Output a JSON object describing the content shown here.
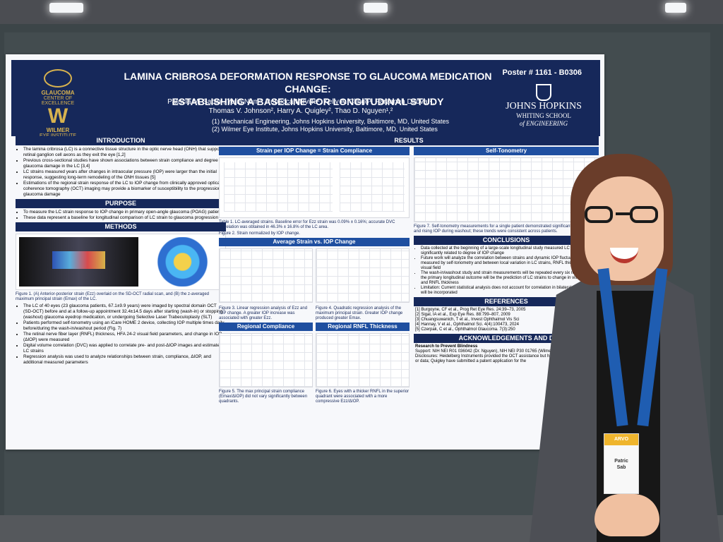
{
  "poster": {
    "number": "Poster # 1161 - B0306",
    "title_line1": "LAMINA CRIBROSA DEFORMATION RESPONSE TO GLAUCOMA MEDICATION CHANGE:",
    "title_line2": "ESTABLISHING A BASELINE FOR LONGITUDINAL STUDY",
    "authors_line1": "Patricia M. Sabin¹, Yulia Nam², Rebecca Mirville², Kelly A. Clingo¹, Farzaneh Dadvar²,",
    "authors_line2": "Thomas V. Johnson², Harry A. Quigley², Thao D. Nguyen¹,²",
    "affiliation_1": "(1)   Mechanical Engineering, Johns Hopkins University, Baltimore, MD, United States",
    "affiliation_2": "(2)   Wilmer Eye Institute, Johns Hopkins University, Baltimore, MD, United States",
    "left_logo_top": "GLAUCOMA",
    "left_logo_top_sub": "CENTER OF EXCELLENCE",
    "left_logo_bottom": "WILMER",
    "left_logo_bottom_sub": "EYE INSTITUTE",
    "jh_line1": "JOHNS HOPKINS",
    "jh_line2": "WHITING SCHOOL",
    "jh_line3": "of ENGINEERING"
  },
  "sections": {
    "introduction": "INTRODUCTION",
    "purpose": "PURPOSE",
    "methods": "METHODS",
    "results": "RESULTS",
    "strain_compliance": "Strain per IOP Change = Strain Compliance",
    "self_tonometry": "Self-Tonometry",
    "average_strain": "Average Strain vs. IOP Change",
    "regional_compliance": "Regional Compliance",
    "regional_rnfl": "Regional RNFL Thickness",
    "conclusions": "CONCLUSIONS",
    "references": "REFERENCES",
    "acknowledgements": "ACKNOWLEDGEMENTS AND D"
  },
  "introduction": {
    "b1": "The lamina cribrosa (LC) is a connective tissue structure in the optic nerve head (ONH) that supports retinal ganglion cell axons as they exit the eye [1,2]",
    "b2": "Previous cross-sectional studies have shown associations between strain compliance and degree of glaucoma damage in the LC [3,4]",
    "b3": "LC strains measured years after changes in intraocular pressure (IOP) were larger than the initial response, suggesting long-term remodeling of the ONH tissues [5]",
    "b4": "Estimations of the regional strain response of the LC to IOP change from clinically approved optical coherence tomography (OCT) imaging may provide a biomarker of susceptibility to the progression of glaucoma damage"
  },
  "purpose": {
    "b1": "To measure the LC strain response to IOP change in primary open-angle glaucoma (POAG) patients",
    "b2": "These data represent a baseline for longitudinal comparison of LC strain to glaucoma progression"
  },
  "methods": {
    "fig1_caption": "Figure 1. (A) Anterior-posterior strain (Ezz) overlaid on the SD-OCT radial scan, and (B) the z-averaged maximum principal strain (Emax) of the LC.",
    "b1": "The LC of 40 eyes (23 glaucoma patients, 67.1±9.9 years) were imaged by spectral domain OCT (SD-OCT) before and at a follow-up appointment 32.4±14.5 days after starting (wash-in) or stopping (washout) glaucoma eyedrop medication, or undergoing Selective Laser Trabeculoplasty (SLT)",
    "b2": "Patients performed self-tonometry using an iCare HOME 2 device, collecting IOP multiple times daily before/during the wash-in/washout period (Fig. 7)",
    "b3": "The retinal nerve fiber layer (RNFL) thickness, HFA 24-2 visual field parameters, and change in IOP (ΔIOP) were measured",
    "b4": "Digital volume correlation (DVC) was applied to correlate pre- and post-ΔIOP images and estimate LC strains",
    "b5": "Regression analysis was used to analyze relationships between strain, compliance, ΔIOP, and additional measured parameters"
  },
  "results": {
    "table1_caption": "Table 1. LC-averaged strains. Baseline error for Ezz strain was 0.09% ± 0.16%; accurate DVC correlation was obtained in 46.3% ± 16.8% of the LC area.",
    "fig2_caption": "Figure 2. Strain normalized by IOP change.",
    "fig3_caption": "Figure 3. Linear regression analysis of Ezz and IOP change. A greater IOP increase was associated with greater Ezz.",
    "fig4_caption": "Figure 4. Quadratic regression analysis of the maximum principal strain. Greater IOP change produced greater Emax.",
    "fig5_caption": "Figure 5. The max principal strain compliance (Emax/ΔIOP) did not vary significantly between quadrants.",
    "fig6_caption": "Figure 6. Eyes with a thicker RNFL in the superior quadrant were associated with a more compressive Ezz/ΔIOP.",
    "fig7_caption": "Figure 7. Self-tonometry measurements for a single patient demonstrated significant fluctuations and rising IOP during washout; these trends were consistent across patients."
  },
  "conclusions": {
    "b1": "Data collected at the beginning of a large-scale longitudinal study measured LC strains significantly related to degree of IOP change",
    "b2": "Future work will analyze the correlation between strains and dynamic IOP fluctuations measured by self-tonometry and between local variation in LC strains, RNFL thickness, and visual field",
    "b3": "The wash-in/washout study and strain measurements will be repeated every six months, and the primary longitudinal outcome will be the prediction of LC strains to change in visual field and RNFL thickness",
    "b4": "Limitation: Current statistical analysis does not account for correlation in bilateral patients; this will be incorporated"
  },
  "references": [
    "[1] Burgoyne, CF et al., Prog Ret Eye Res. 24:39–73, 2005",
    "[2] Sigal, IA et al., Exp Eye Res. 88:799–807, 2009",
    "[3] Chuangsuwanich, T et al., Invest Ophthalmol Vis Sci",
    "[4] Hannay, V et al., Ophthalmol Sci. 4(4):100473, 2024",
    "[5] Czerpak, C et al., Ophthalmol Glaucoma. 7(3):250"
  ],
  "acknowledgements": {
    "rpb": "Research to Prevent Blindness",
    "support": "Support: NIH NEI R01 036042 (Dr. Nguyen), NIH NEI P30 01765 (Wilmer Institute Core Grant)",
    "disclosures": "Disclosures: Heidelberg Instruments provided the OCT assistance but had no role in study design or data; Quigley have submitted a patent application for the"
  },
  "lanyard": {
    "logo": "ARVO",
    "badge_name_line1": "Patric",
    "badge_name_line2": "Sab"
  },
  "colors": {
    "poster_navy": "#16285a",
    "accent_blue": "#1f4fa0",
    "lanyard_blue": "#1f5db1",
    "background_wall": "#434c4f"
  }
}
